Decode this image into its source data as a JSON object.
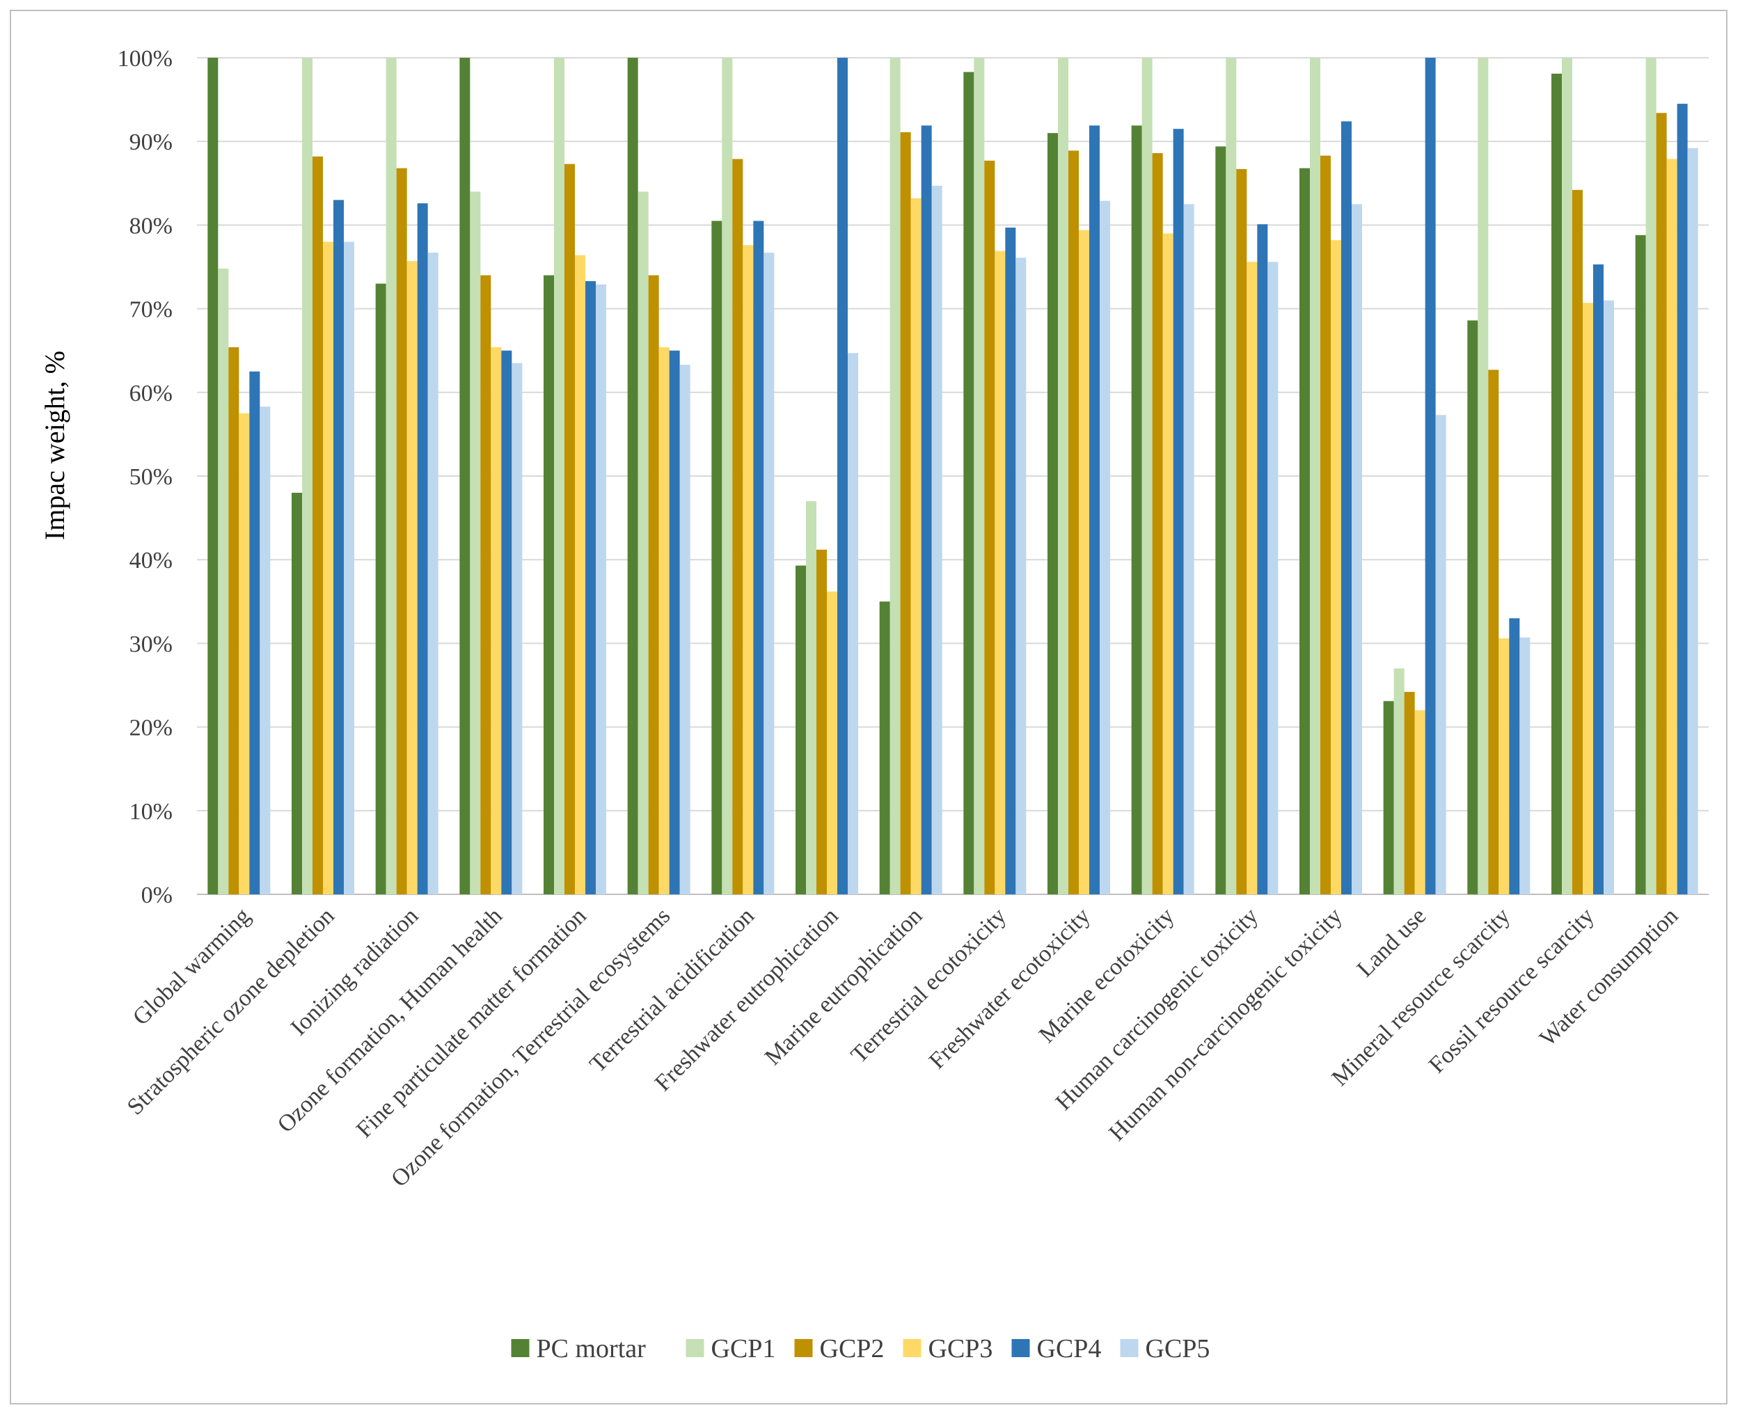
{
  "chart_data": {
    "type": "bar",
    "ylabel": "Impac weight, %",
    "ylim": [
      0,
      100
    ],
    "y_ticks": [
      "0%",
      "10%",
      "20%",
      "30%",
      "40%",
      "50%",
      "60%",
      "70%",
      "80%",
      "90%",
      "100%"
    ],
    "grid": true,
    "legend_position": "bottom",
    "categories": [
      "Global warming",
      "Stratospheric ozone depletion",
      "Ionizing radiation",
      "Ozone formation, Human health",
      "Fine particulate matter formation",
      "Ozone formation, Terrestrial ecosystems",
      "Terrestrial acidification",
      "Freshwater eutrophication",
      "Marine eutrophication",
      "Terrestrial ecotoxicity",
      "Freshwater ecotoxicity",
      "Marine ecotoxicity",
      "Human carcinogenic toxicity",
      "Human non-carcinogenic toxicity",
      "Land use",
      "Mineral resource scarcity",
      "Fossil resource scarcity",
      "Water consumption"
    ],
    "series": [
      {
        "name": "PC mortar",
        "color": "#548235",
        "values": [
          100,
          48,
          73,
          100,
          74,
          100,
          80.5,
          39.3,
          35,
          98.3,
          91,
          91.9,
          89.4,
          86.8,
          23.1,
          68.6,
          98.1,
          78.8
        ]
      },
      {
        "name": "GCP1",
        "color": "#c5e0b4",
        "values": [
          74.8,
          100,
          100,
          84,
          100,
          84,
          100,
          47,
          100,
          100,
          100,
          100,
          100,
          100,
          27,
          100,
          100,
          100
        ]
      },
      {
        "name": "GCP2",
        "color": "#bf9000",
        "values": [
          65.4,
          88.2,
          86.8,
          74,
          87.3,
          74,
          87.9,
          41.2,
          91.1,
          87.7,
          88.9,
          88.6,
          86.7,
          88.3,
          24.2,
          62.7,
          84.2,
          93.4
        ]
      },
      {
        "name": "GCP3",
        "color": "#ffd966",
        "values": [
          57.5,
          78,
          75.7,
          65.4,
          76.4,
          65.4,
          77.6,
          36.2,
          83.2,
          76.9,
          79.4,
          79,
          75.6,
          78.2,
          22,
          30.6,
          70.7,
          87.9
        ]
      },
      {
        "name": "GCP4",
        "color": "#2e75b6",
        "values": [
          62.5,
          83,
          82.6,
          65,
          73.3,
          65,
          80.5,
          100,
          91.9,
          79.7,
          91.9,
          91.5,
          80.1,
          92.4,
          100,
          33,
          75.3,
          94.5
        ]
      },
      {
        "name": "GCP5",
        "color": "#bdd7ee",
        "values": [
          58.3,
          78,
          76.7,
          63.5,
          72.9,
          63.3,
          76.7,
          64.7,
          84.7,
          76.1,
          82.9,
          82.5,
          75.6,
          82.5,
          57.3,
          30.7,
          71,
          89.2
        ]
      }
    ]
  }
}
